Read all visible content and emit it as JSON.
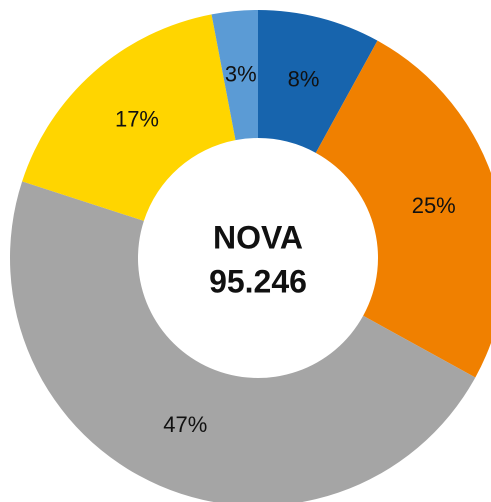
{
  "chart_data": {
    "type": "donut",
    "center_title": "NOVA",
    "center_value": "95.246",
    "categories": [
      null,
      null,
      null,
      null,
      null
    ],
    "values": [
      8,
      25,
      47,
      17,
      3
    ],
    "value_labels": [
      "8%",
      "25%",
      "47%",
      "17%",
      "3%"
    ],
    "colors": [
      "#1764ad",
      "#f08000",
      "#a5a5a5",
      "#ffd500",
      "#5b9bd5"
    ]
  }
}
